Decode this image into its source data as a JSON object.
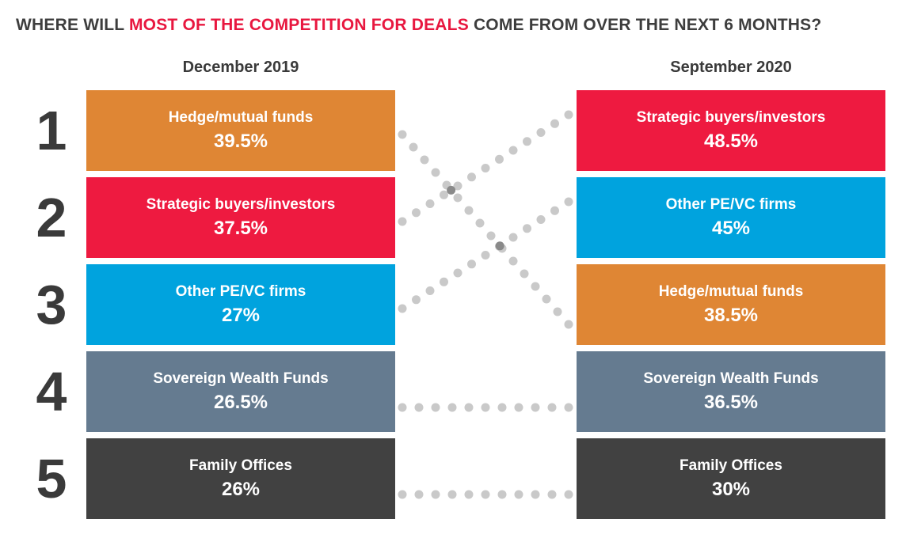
{
  "title": {
    "part1": "WHERE WILL ",
    "highlight": "MOST OF THE COMPETITION FOR DEALS",
    "part2": " COME FROM OVER THE NEXT 6 MONTHS?"
  },
  "colors": {
    "hedge": "#df8634",
    "strategic": "#ee1a40",
    "pevc": "#00a3de",
    "sovereign": "#657b90",
    "family": "#414141",
    "dots": "#c9c9c9",
    "dots_dark": "#8a8a8a"
  },
  "ranks": [
    "1",
    "2",
    "3",
    "4",
    "5"
  ],
  "chart_data": {
    "type": "table",
    "columns": [
      "December 2019",
      "September 2020"
    ],
    "december_2019": [
      {
        "rank": 1,
        "label": "Hedge/mutual funds",
        "value": 39.5,
        "value_text": "39.5%",
        "color_key": "hedge"
      },
      {
        "rank": 2,
        "label": "Strategic buyers/investors",
        "value": 37.5,
        "value_text": "37.5%",
        "color_key": "strategic"
      },
      {
        "rank": 3,
        "label": "Other PE/VC firms",
        "value": 27,
        "value_text": "27%",
        "color_key": "pevc"
      },
      {
        "rank": 4,
        "label": "Sovereign Wealth Funds",
        "value": 26.5,
        "value_text": "26.5%",
        "color_key": "sovereign"
      },
      {
        "rank": 5,
        "label": "Family Offices",
        "value": 26,
        "value_text": "26%",
        "color_key": "family"
      }
    ],
    "september_2020": [
      {
        "rank": 1,
        "label": "Strategic buyers/investors",
        "value": 48.5,
        "value_text": "48.5%",
        "color_key": "strategic"
      },
      {
        "rank": 2,
        "label": "Other PE/VC firms",
        "value": 45,
        "value_text": "45%",
        "color_key": "pevc"
      },
      {
        "rank": 3,
        "label": "Hedge/mutual funds",
        "value": 38.5,
        "value_text": "38.5%",
        "color_key": "hedge"
      },
      {
        "rank": 4,
        "label": "Sovereign Wealth Funds",
        "value": 36.5,
        "value_text": "36.5%",
        "color_key": "sovereign"
      },
      {
        "rank": 5,
        "label": "Family Offices",
        "value": 30,
        "value_text": "30%",
        "color_key": "family"
      }
    ],
    "rank_changes": [
      {
        "category": "Hedge/mutual funds",
        "from": 1,
        "to": 3
      },
      {
        "category": "Strategic buyers/investors",
        "from": 2,
        "to": 1
      },
      {
        "category": "Other PE/VC firms",
        "from": 3,
        "to": 2
      },
      {
        "category": "Sovereign Wealth Funds",
        "from": 4,
        "to": 4
      },
      {
        "category": "Family Offices",
        "from": 5,
        "to": 5
      }
    ]
  }
}
